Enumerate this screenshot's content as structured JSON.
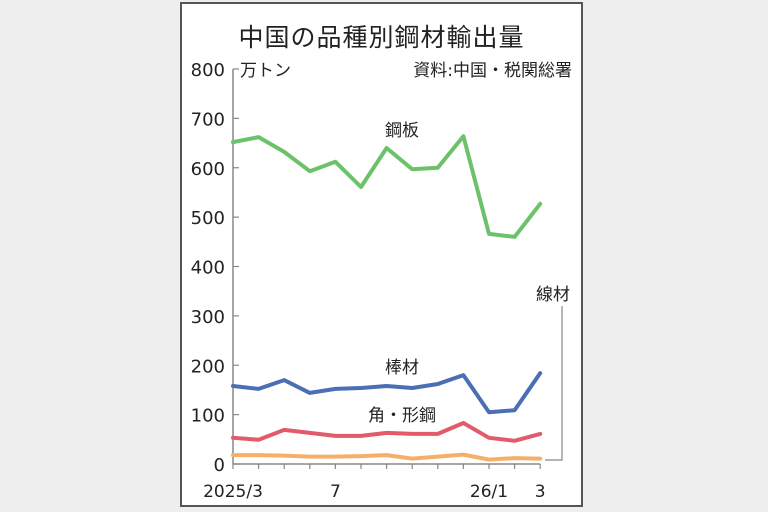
{
  "title": "中国の品種別鋼材輸出量",
  "unit_label": "万トン",
  "source": "資料:中国・税関総署",
  "colors": {
    "steel_plate": "#6cc26a",
    "bar": "#4a6fb5",
    "section": "#e35a6a",
    "wire_rod": "#f4b06a",
    "axis": "#888888"
  },
  "chart_data": {
    "type": "line",
    "title": "中国の品種別鋼材輸出量",
    "xlabel": "",
    "ylabel": "万トン",
    "ylim": [
      0,
      800
    ],
    "yticks": [
      0,
      100,
      200,
      300,
      400,
      500,
      600,
      700,
      800
    ],
    "x": [
      "2025/3",
      "2025/4",
      "2025/5",
      "2025/6",
      "2025/7",
      "2025/8",
      "2025/9",
      "2025/10",
      "2025/11",
      "2025/12",
      "2026/1",
      "2026/2",
      "2026/3"
    ],
    "xtick_labels": [
      {
        "index": 0,
        "label": "2025/3"
      },
      {
        "index": 4,
        "label": "7"
      },
      {
        "index": 10,
        "label": "26/1"
      },
      {
        "index": 12,
        "label": "3"
      }
    ],
    "series": [
      {
        "name": "鋼板",
        "values": [
          652,
          662,
          632,
          593,
          612,
          561,
          640,
          597,
          600,
          664,
          466,
          460,
          527
        ]
      },
      {
        "name": "棒材",
        "values": [
          158,
          152,
          170,
          144,
          152,
          154,
          158,
          154,
          162,
          180,
          105,
          109,
          184
        ]
      },
      {
        "name": "角・形鋼",
        "values": [
          53,
          49,
          69,
          63,
          57,
          57,
          63,
          61,
          61,
          83,
          53,
          47,
          61
        ]
      },
      {
        "name": "線材",
        "values": [
          18,
          18,
          17,
          15,
          15,
          16,
          18,
          11,
          15,
          19,
          9,
          12,
          11
        ]
      }
    ],
    "annotation": "資料:中国・税関総署",
    "grid": false,
    "legend": "inline labels"
  }
}
